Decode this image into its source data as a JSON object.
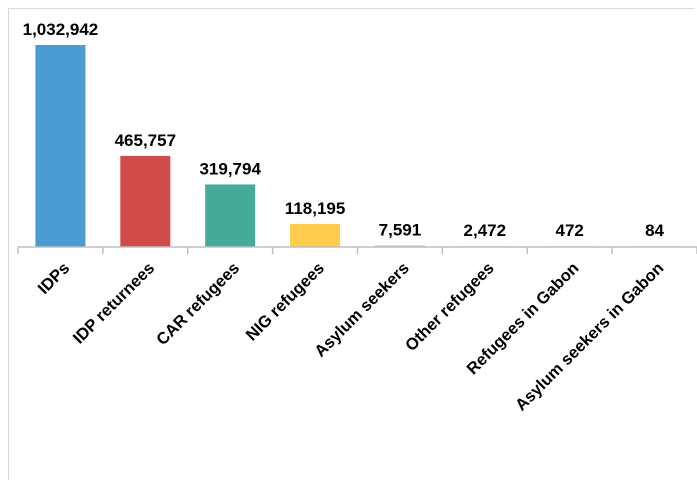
{
  "chart_data": {
    "type": "bar",
    "title": "",
    "xlabel": "",
    "ylabel": "",
    "categories": [
      "IDPs",
      "IDP returnees",
      "CAR refugees",
      "NIG refugees",
      "Asylum seekers",
      "Other refugees",
      "Refugees in Gabon",
      "Asylum seekers in Gabon"
    ],
    "values": [
      1032942,
      465757,
      319794,
      118195,
      7591,
      2472,
      472,
      84
    ],
    "value_labels": [
      "1,032,942",
      "465,757",
      "319,794",
      "118,195",
      "7,591",
      "2,472",
      "472",
      "84"
    ],
    "colors": [
      "#4a9ad4",
      "#d14b4b",
      "#45ab98",
      "#ffcc4d",
      "#bfbfbf",
      "#bfbfbf",
      "#bfbfbf",
      "#bfbfbf"
    ],
    "ylim": [
      0,
      1032942
    ],
    "grid": false,
    "legend": "none"
  }
}
